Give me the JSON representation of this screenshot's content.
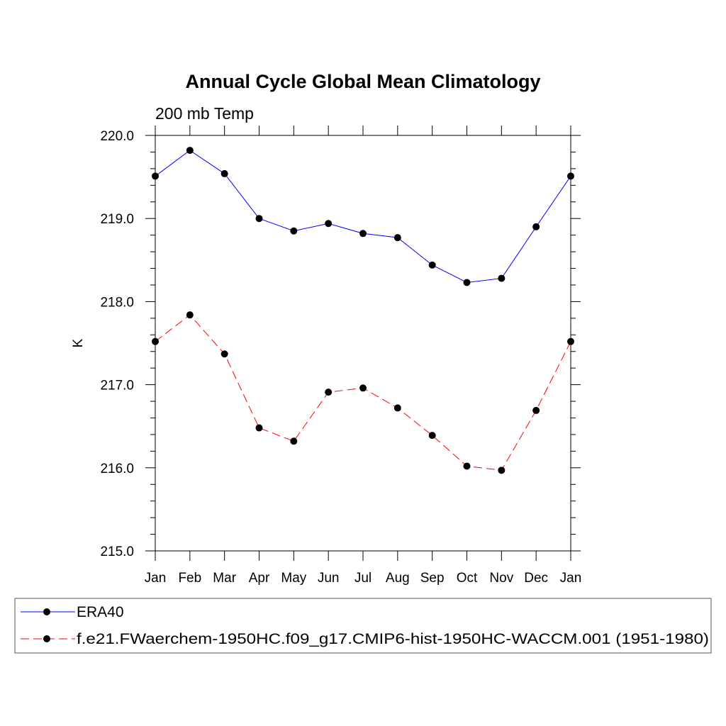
{
  "chart_data": {
    "type": "line",
    "title": "Annual Cycle Global Mean Climatology",
    "subtitle": "200 mb Temp",
    "ylabel": "K",
    "xlabel": "",
    "categories": [
      "Jan",
      "Feb",
      "Mar",
      "Apr",
      "May",
      "Jun",
      "Jul",
      "Aug",
      "Sep",
      "Oct",
      "Nov",
      "Dec",
      "Jan"
    ],
    "ylim": [
      215.0,
      220.0
    ],
    "yticks": [
      "215.0",
      "216.0",
      "217.0",
      "218.0",
      "219.0",
      "220.0"
    ],
    "grid": false,
    "legend_position": "bottom",
    "series": [
      {
        "name": "ERA40",
        "color": "#0000ff",
        "dashed": false,
        "values": [
          219.51,
          219.82,
          219.54,
          219.0,
          218.85,
          218.94,
          218.82,
          218.77,
          218.44,
          218.23,
          218.28,
          218.9,
          219.51
        ]
      },
      {
        "name": "f.e21.FWaerchem-1950HC.f09_g17.CMIP6-hist-1950HC-WACCM.001 (1951-1980)",
        "color": "#ff0000",
        "dashed": true,
        "values": [
          217.52,
          217.84,
          217.37,
          216.48,
          216.32,
          216.91,
          216.96,
          216.72,
          216.39,
          216.02,
          215.97,
          216.69,
          217.52
        ]
      }
    ]
  }
}
